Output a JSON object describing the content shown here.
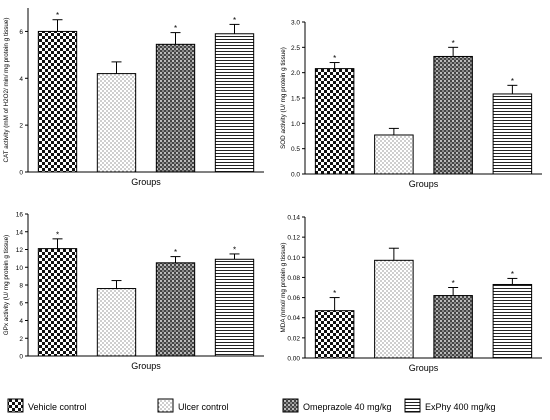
{
  "chart_data": [
    {
      "type": "bar",
      "categories": [
        "Vehicle control",
        "Ulcer control",
        "Omeprazole 40 mg/kg",
        "ExPhy 400 mg/kg"
      ],
      "values": [
        6.0,
        4.2,
        5.45,
        5.9
      ],
      "errors": [
        0.5,
        0.5,
        0.5,
        0.4
      ],
      "significance": [
        "*",
        "",
        "*",
        "*"
      ],
      "ylabel": "CAT activity (mM of H2O2/ min/ mg protein g tissue)",
      "xlabel": "Groups",
      "ylim": [
        0,
        7
      ],
      "yticks": [
        0,
        2,
        4,
        6
      ],
      "ytick_labels": [
        "0",
        "2",
        "4",
        "6"
      ]
    },
    {
      "type": "bar",
      "categories": [
        "Vehicle control",
        "Ulcer control",
        "Omeprazole 40 mg/kg",
        "ExPhy 400 mg/kg"
      ],
      "values": [
        2.08,
        0.77,
        2.32,
        1.58
      ],
      "errors": [
        0.12,
        0.13,
        0.18,
        0.17
      ],
      "significance": [
        "*",
        "",
        "*",
        "*"
      ],
      "ylabel": "SOD activity (U/ mg protein g tissue)",
      "xlabel": "Groups",
      "ylim": [
        0,
        3
      ],
      "yticks": [
        0,
        0.5,
        1,
        1.5,
        2,
        2.5,
        3
      ],
      "ytick_labels": [
        "0.0",
        "0.5",
        "1.0",
        "1.5",
        "2.0",
        "2.5",
        "3.0"
      ]
    },
    {
      "type": "bar",
      "categories": [
        "Vehicle control",
        "Ulcer control",
        "Omeprazole 40 mg/kg",
        "ExPhy 400 mg/kg"
      ],
      "values": [
        12.1,
        7.6,
        10.5,
        10.9
      ],
      "errors": [
        1.1,
        0.9,
        0.7,
        0.6
      ],
      "significance": [
        "*",
        "",
        "*",
        "*"
      ],
      "ylabel": "GPx activity (U/ mg protein g tissue)",
      "xlabel": "Groups",
      "ylim": [
        0,
        16
      ],
      "yticks": [
        0,
        2,
        4,
        6,
        8,
        10,
        12,
        14,
        16
      ],
      "ytick_labels": [
        "0",
        "2",
        "4",
        "6",
        "8",
        "10",
        "12",
        "14",
        "16"
      ]
    },
    {
      "type": "bar",
      "categories": [
        "Vehicle control",
        "Ulcer control",
        "Omeprazole 40 mg/kg",
        "ExPhy 400 mg/kg"
      ],
      "values": [
        0.047,
        0.097,
        0.062,
        0.073
      ],
      "errors": [
        0.013,
        0.012,
        0.008,
        0.006
      ],
      "significance": [
        "*",
        "",
        "*",
        "*"
      ],
      "ylabel": "MDA (nmol/ mg protein g tissue)",
      "xlabel": "Groups",
      "ylim": [
        0,
        0.14
      ],
      "yticks": [
        0,
        0.02,
        0.04,
        0.06,
        0.08,
        0.1,
        0.12,
        0.14
      ],
      "ytick_labels": [
        "0.00",
        "0.02",
        "0.04",
        "0.06",
        "0.08",
        "0.10",
        "0.12",
        "0.14"
      ]
    }
  ],
  "legend": {
    "items": [
      {
        "label": "Vehicle control",
        "pattern": "checker"
      },
      {
        "label": "Ulcer control",
        "pattern": "dots"
      },
      {
        "label": "Omeprazole 40 mg/kg",
        "pattern": "grid"
      },
      {
        "label": "ExPhy 400 mg/kg",
        "pattern": "hlines"
      }
    ]
  }
}
